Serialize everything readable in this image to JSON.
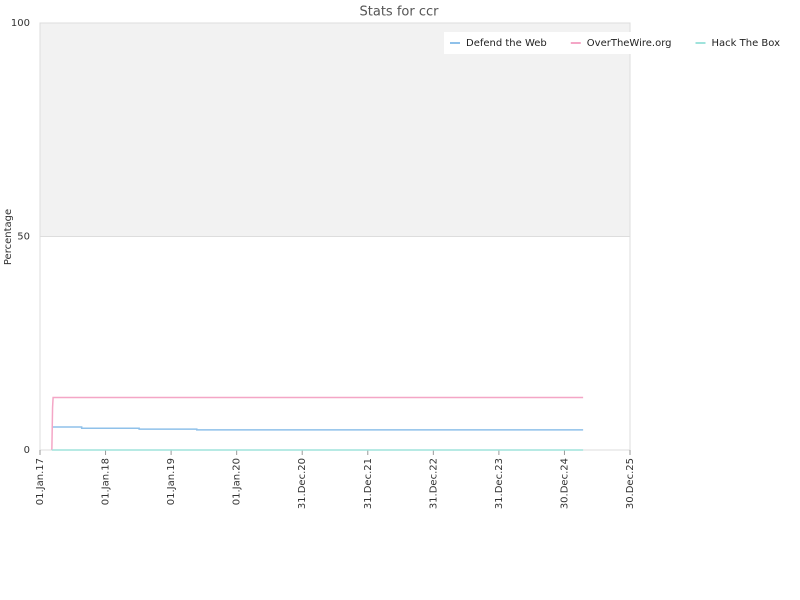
{
  "chart_data": {
    "type": "line",
    "title": "Stats for ccr",
    "y_label": "Percentage",
    "xlim": [
      "2017-01-01",
      "2025-12-30"
    ],
    "xticks": [
      {
        "value": "2017-01-01",
        "label": "01.Jan.17"
      },
      {
        "value": "2018-01-01",
        "label": "01.Jan.18"
      },
      {
        "value": "2019-01-01",
        "label": "01.Jan.19"
      },
      {
        "value": "2020-01-01",
        "label": "01.Jan.20"
      },
      {
        "value": "2020-12-31",
        "label": "31.Dec.20"
      },
      {
        "value": "2021-12-31",
        "label": "31.Dec.21"
      },
      {
        "value": "2022-12-31",
        "label": "31.Dec.22"
      },
      {
        "value": "2023-12-31",
        "label": "31.Dec.23"
      },
      {
        "value": "2024-12-30",
        "label": "30.Dec.24"
      },
      {
        "value": "2025-12-30",
        "label": "30.Dec.25"
      }
    ],
    "ylim": [
      0,
      100
    ],
    "yticks": [
      0,
      50,
      100
    ],
    "grid": true,
    "legend": "top-right",
    "series": [
      {
        "name": "Defend the Web",
        "color": "#8fc1ea",
        "x": [
          "2017-03-08",
          "2017-08-21",
          "2017-08-21",
          "2018-07-07",
          "2018-07-07",
          "2019-05-24",
          "2019-05-24",
          "2025-04-13"
        ],
        "values": [
          5.4,
          5.4,
          5.1,
          5.1,
          4.9,
          4.9,
          4.7,
          4.7
        ]
      },
      {
        "name": "OverTheWire.org",
        "color": "#f4a6c6",
        "x": [
          "2017-03-08",
          "2017-03-12",
          "2017-03-15",
          "2025-04-13"
        ],
        "values": [
          0,
          10,
          12.3,
          12.3
        ]
      },
      {
        "name": "Hack The Box",
        "color": "#9fe3dc",
        "x": [
          "2017-03-08",
          "2025-04-13"
        ],
        "values": [
          0,
          0
        ]
      }
    ]
  }
}
